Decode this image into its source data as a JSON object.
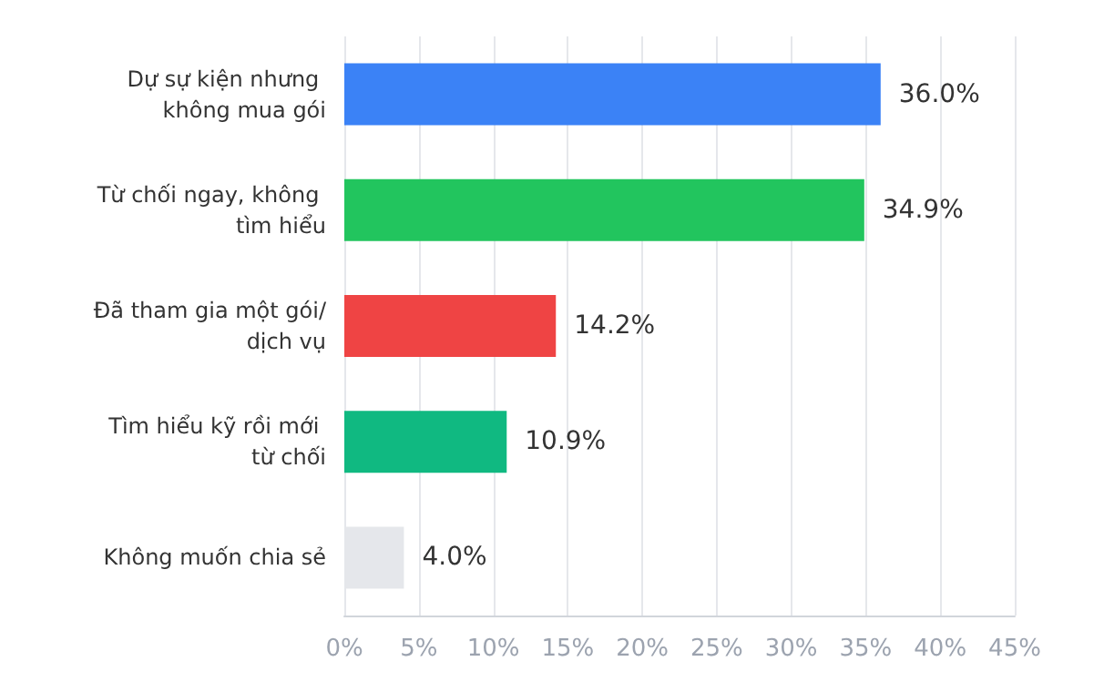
{
  "chart_data": {
    "type": "bar",
    "orientation": "horizontal",
    "categories": [
      "Dự sự kiện nhưng không mua gói",
      "Từ chối ngay, không tìm hiểu",
      "Đã tham gia một gói/dịch vụ",
      "Tìm hiểu kỹ rồi mới từ chối",
      "Không muốn chia sẻ"
    ],
    "values": [
      36.0,
      34.9,
      14.2,
      10.9,
      4.0
    ],
    "colors": [
      "#3b82f6",
      "#22c55e",
      "#ef4444",
      "#10b981",
      "#e5e7eb"
    ],
    "value_labels": [
      "36.0%",
      "34.9%",
      "14.2%",
      "10.9%",
      "4.0%"
    ],
    "xlim": [
      0,
      45
    ],
    "xticks": [
      {
        "value": 0,
        "label": "0%"
      },
      {
        "value": 5,
        "label": "5%"
      },
      {
        "value": 10,
        "label": "10%"
      },
      {
        "value": 15,
        "label": "15%"
      },
      {
        "value": 20,
        "label": "20%"
      },
      {
        "value": 25,
        "label": "25%"
      },
      {
        "value": 30,
        "label": "30%"
      },
      {
        "value": 35,
        "label": "35%"
      },
      {
        "value": 40,
        "label": "40%"
      },
      {
        "value": 45,
        "label": "45%"
      }
    ],
    "grid": "x"
  }
}
